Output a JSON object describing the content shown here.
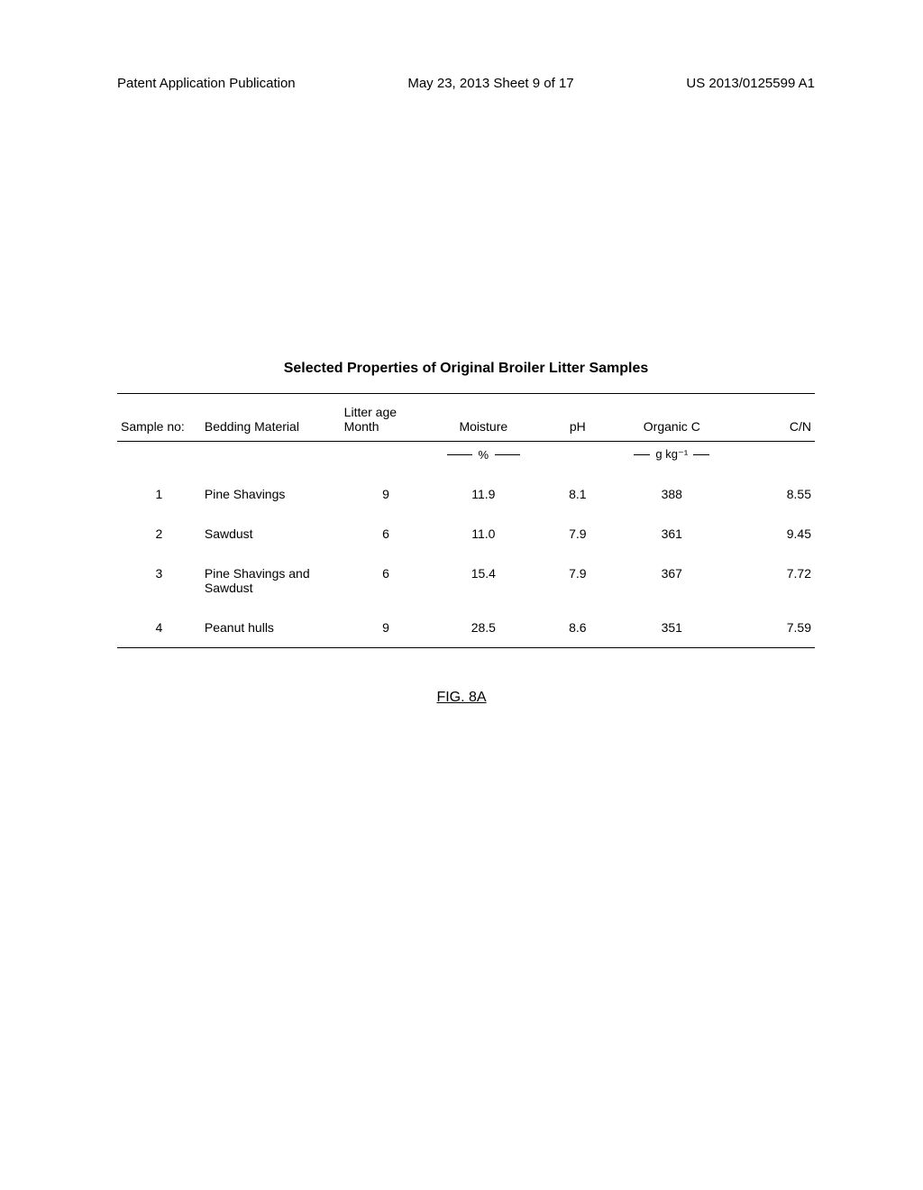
{
  "header": {
    "left": "Patent Application Publication",
    "center": "May 23, 2013  Sheet 9 of 17",
    "right": "US 2013/0125599 A1"
  },
  "table": {
    "title": "Selected Properties of Original Broiler Litter Samples",
    "columns": {
      "sample_no": "Sample no:",
      "bedding_material": "Bedding Material",
      "litter_age": "Litter age Month",
      "moisture": "Moisture",
      "ph": "pH",
      "organic_c": "Organic C",
      "cn": "C/N"
    },
    "units": {
      "moisture": "%",
      "organic_c": "g kg⁻¹"
    },
    "rows": [
      {
        "sample_no": "1",
        "bedding_material": "Pine Shavings",
        "litter_age": "9",
        "moisture": "11.9",
        "ph": "8.1",
        "organic_c": "388",
        "cn": "8.55"
      },
      {
        "sample_no": "2",
        "bedding_material": "Sawdust",
        "litter_age": "6",
        "moisture": "11.0",
        "ph": "7.9",
        "organic_c": "361",
        "cn": "9.45"
      },
      {
        "sample_no": "3",
        "bedding_material": "Pine Shavings and Sawdust",
        "litter_age": "6",
        "moisture": "15.4",
        "ph": "7.9",
        "organic_c": "367",
        "cn": "7.72"
      },
      {
        "sample_no": "4",
        "bedding_material": "Peanut hulls",
        "litter_age": "9",
        "moisture": "28.5",
        "ph": "8.6",
        "organic_c": "351",
        "cn": "7.59"
      }
    ]
  },
  "figure_label": "FIG. 8A"
}
